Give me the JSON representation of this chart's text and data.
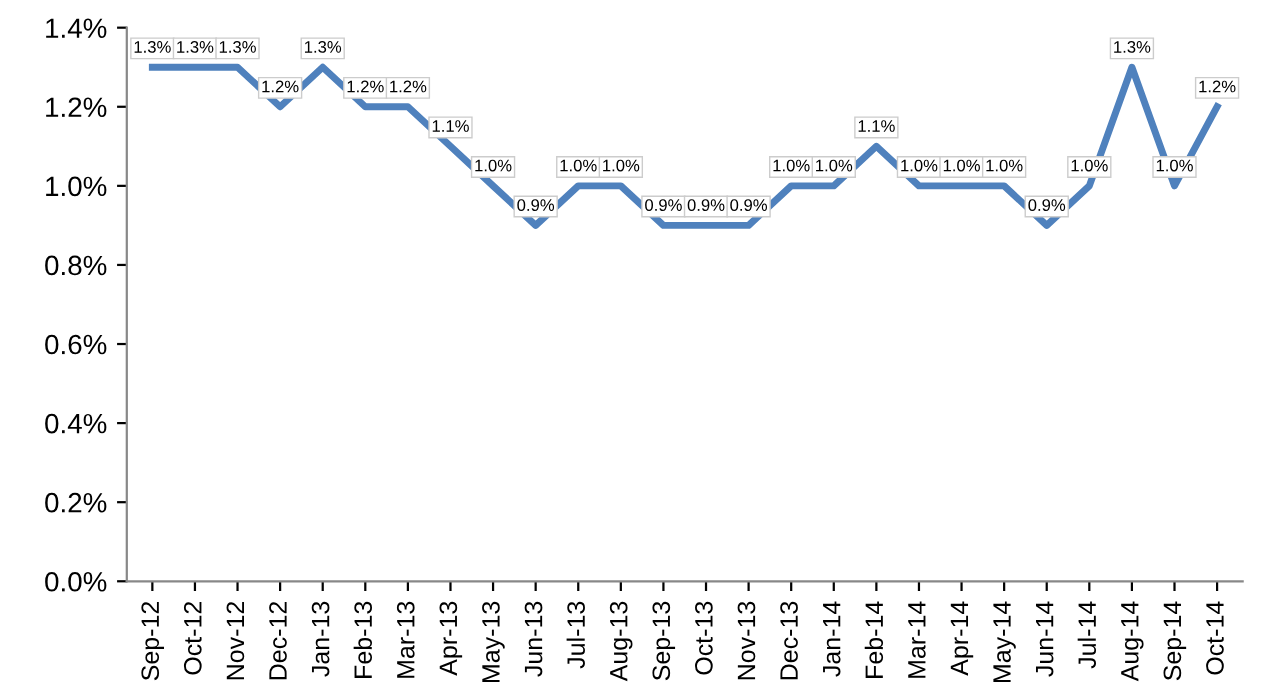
{
  "chart_data": {
    "type": "line",
    "categories": [
      "Sep-12",
      "Oct-12",
      "Nov-12",
      "Dec-12",
      "Jan-13",
      "Feb-13",
      "Mar-13",
      "Apr-13",
      "May-13",
      "Jun-13",
      "Jul-13",
      "Aug-13",
      "Sep-13",
      "Oct-13",
      "Nov-13",
      "Dec-13",
      "Jan-14",
      "Feb-14",
      "Mar-14",
      "Apr-14",
      "May-14",
      "Jun-14",
      "Jul-14",
      "Aug-14",
      "Sep-14",
      "Oct-14"
    ],
    "series": [
      {
        "color": "#4f81bd",
        "values": [
          1.3,
          1.3,
          1.3,
          1.2,
          1.3,
          1.2,
          1.2,
          1.1,
          1.0,
          0.9,
          1.0,
          1.0,
          0.9,
          0.9,
          0.9,
          1.0,
          1.0,
          1.1,
          1.0,
          1.0,
          1.0,
          0.9,
          1.0,
          1.3,
          1.0,
          1.2
        ],
        "value_labels": [
          "1.3%",
          "1.3%",
          "1.3%",
          "1.2%",
          "1.3%",
          "1.2%",
          "1.2%",
          "1.1%",
          "1.0%",
          "0.9%",
          "1.0%",
          "1.0%",
          "0.9%",
          "0.9%",
          "0.9%",
          "1.0%",
          "1.0%",
          "1.1%",
          "1.0%",
          "1.0%",
          "1.0%",
          "0.9%",
          "1.0%",
          "1.3%",
          "1.0%",
          "1.2%"
        ]
      }
    ],
    "ylim": [
      0,
      1.4
    ],
    "yticks": [
      {
        "value": 0,
        "label": "0.0%"
      },
      {
        "value": 0.2,
        "label": "0.2%"
      },
      {
        "value": 0.4,
        "label": "0.4%"
      },
      {
        "value": 0.6,
        "label": "0.6%"
      },
      {
        "value": 0.8,
        "label": "0.8%"
      },
      {
        "value": 1.0,
        "label": "1.0%"
      },
      {
        "value": 1.2,
        "label": "1.2%"
      },
      {
        "value": 1.4,
        "label": "1.4%"
      }
    ],
    "grid": false,
    "legend": false,
    "marker": "none",
    "line_style": "solid"
  }
}
